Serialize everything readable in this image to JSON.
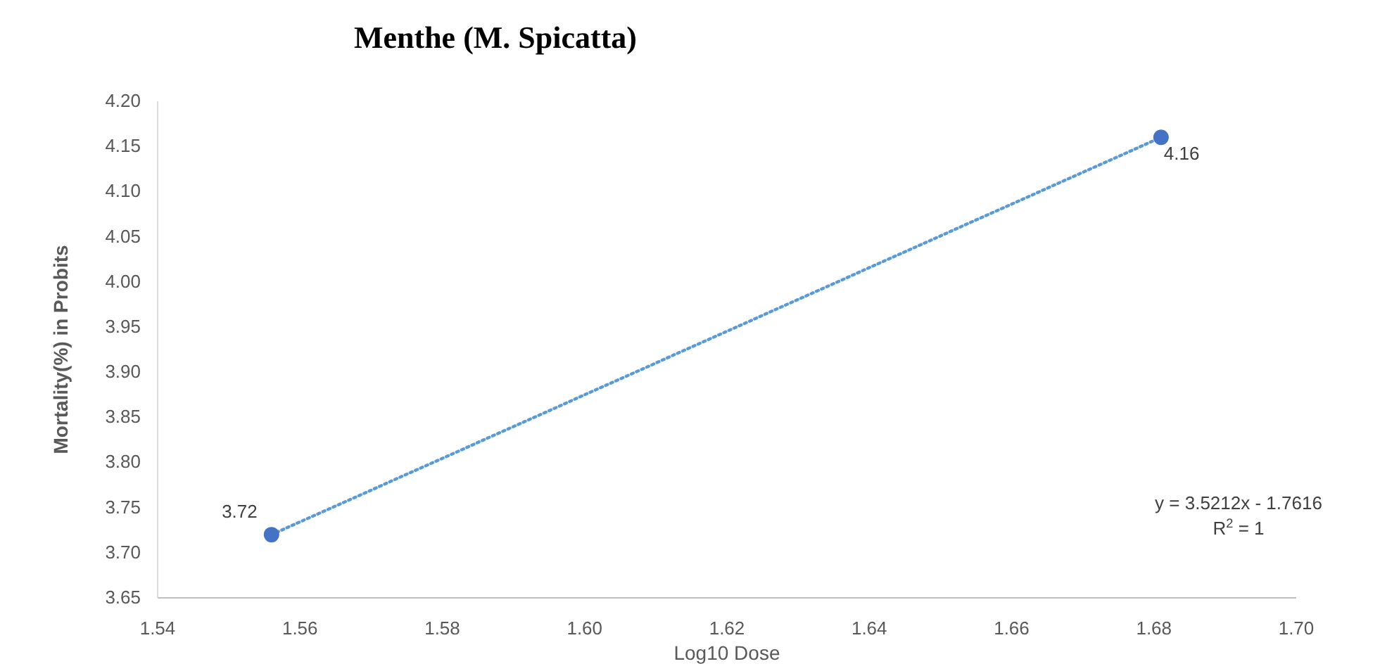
{
  "chart_data": {
    "type": "scatter",
    "title": "Menthe (M. Spicatta)",
    "xlabel": "Log10 Dose",
    "ylabel": "Mortality(%) in Probits",
    "x": [
      1.556,
      1.681
    ],
    "series": [
      {
        "color": "#4472c4",
        "values": [
          3.72,
          4.16
        ],
        "value_labels": [
          "3.72",
          "4.16"
        ],
        "marker": "circle"
      },
      {
        "type": "line",
        "color": "#5b9bd5",
        "x": [
          1.556,
          1.681
        ],
        "values": [
          3.72,
          4.16
        ],
        "line_style": "dotted"
      }
    ],
    "xlim": [
      1.54,
      1.7
    ],
    "xticks": [
      {
        "value": 1.54,
        "label": "1.54"
      },
      {
        "value": 1.56,
        "label": "1.56"
      },
      {
        "value": 1.58,
        "label": "1.58"
      },
      {
        "value": 1.6,
        "label": "1.60"
      },
      {
        "value": 1.62,
        "label": "1.62"
      },
      {
        "value": 1.64,
        "label": "1.64"
      },
      {
        "value": 1.66,
        "label": "1.66"
      },
      {
        "value": 1.68,
        "label": "1.68"
      },
      {
        "value": 1.7,
        "label": "1.70"
      }
    ],
    "ylim": [
      3.65,
      4.2
    ],
    "yticks": [
      {
        "value": 3.65,
        "label": "3.65"
      },
      {
        "value": 3.7,
        "label": "3.70"
      },
      {
        "value": 3.75,
        "label": "3.75"
      },
      {
        "value": 3.8,
        "label": "3.80"
      },
      {
        "value": 3.85,
        "label": "3.85"
      },
      {
        "value": 3.9,
        "label": "3.90"
      },
      {
        "value": 3.95,
        "label": "3.95"
      },
      {
        "value": 4.0,
        "label": "4.00"
      },
      {
        "value": 4.05,
        "label": "4.05"
      },
      {
        "value": 4.1,
        "label": "4.10"
      },
      {
        "value": 4.15,
        "label": "4.15"
      },
      {
        "value": 4.2,
        "label": "4.20"
      }
    ],
    "grid": false,
    "annotations": [
      "y = 3.5212x - 1.7616",
      "R$^{2}$ = 1"
    ]
  }
}
